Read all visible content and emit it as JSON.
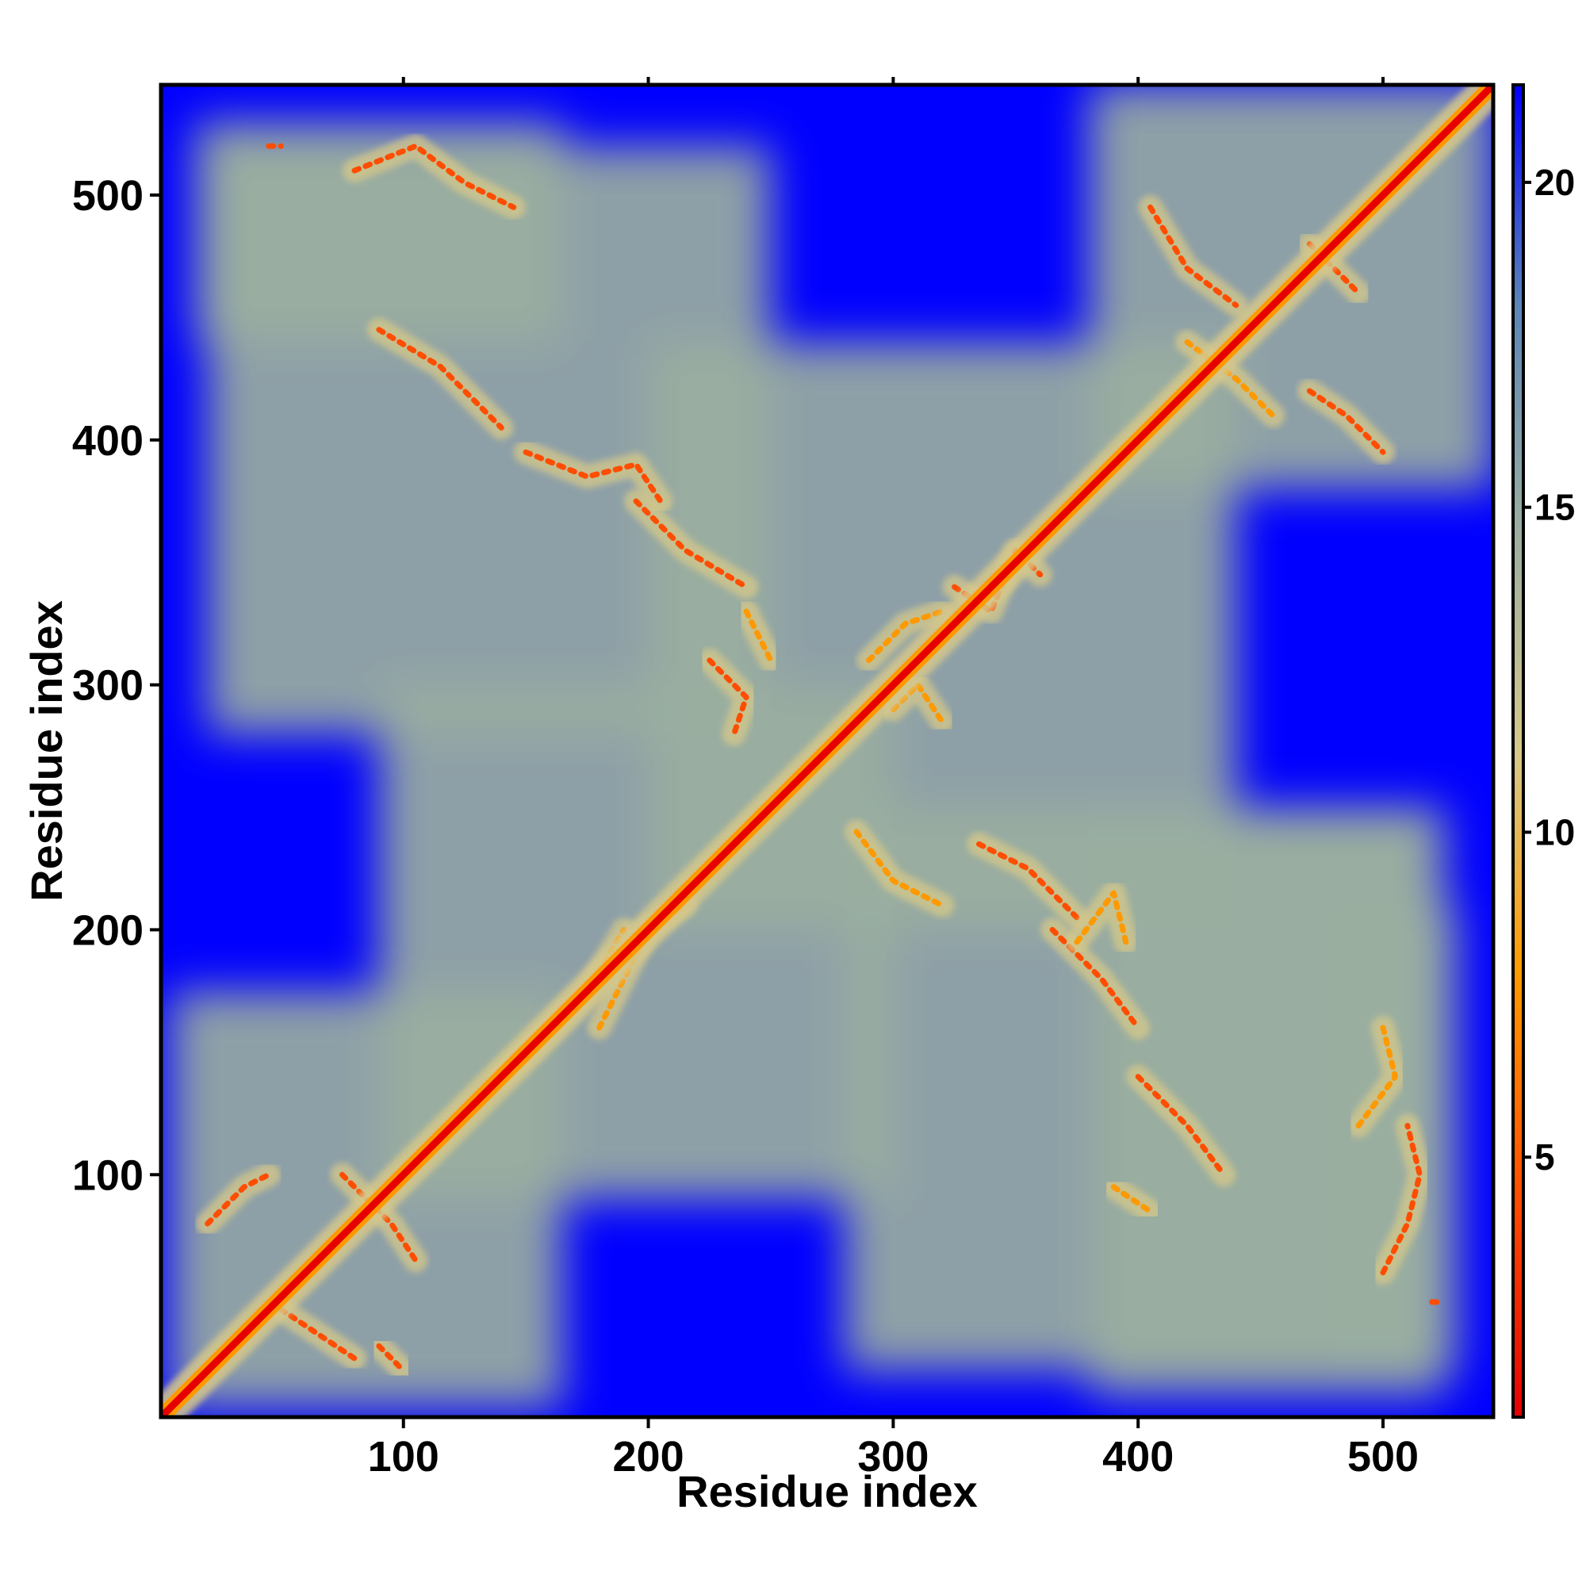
{
  "chart_data": {
    "type": "heatmap",
    "title": "",
    "xlabel": "Residue index",
    "ylabel": "Residue index",
    "xlim": [
      1,
      545
    ],
    "ylim": [
      1,
      545
    ],
    "x_ticks": [
      100,
      200,
      300,
      400,
      500
    ],
    "y_ticks": [
      100,
      200,
      300,
      400,
      500
    ],
    "x_tick_labels": [
      "100",
      "200",
      "300",
      "400",
      "500"
    ],
    "y_tick_labels": [
      "100",
      "200",
      "300",
      "400",
      "500"
    ],
    "colorbar": {
      "range": [
        1,
        21.5
      ],
      "ticks": [
        5,
        10,
        15,
        20
      ],
      "tick_labels": [
        "5",
        "10",
        "15",
        "20"
      ],
      "colors": [
        "#e60000",
        "#ff4d00",
        "#ff9900",
        "#d6c88a",
        "#9aaea0",
        "#5b87b8",
        "#0000ff"
      ]
    },
    "background_color": "#0000ff",
    "diagonal": {
      "from": [
        1,
        1
      ],
      "to": [
        545,
        545
      ],
      "color": "#e60000"
    },
    "regions": [
      {
        "x": [
          5,
          165
        ],
        "y": [
          5,
          175
        ],
        "value": 14
      },
      {
        "x": [
          90,
          300
        ],
        "y": [
          90,
          300
        ],
        "value": 14
      },
      {
        "x": [
          200,
          440
        ],
        "y": [
          200,
          440
        ],
        "value": 14
      },
      {
        "x": [
          380,
          545
        ],
        "y": [
          380,
          545
        ],
        "value": 14
      },
      {
        "x": [
          20,
          250
        ],
        "y": [
          280,
          520
        ],
        "value": 15
      },
      {
        "x": [
          280,
          520
        ],
        "y": [
          20,
          250
        ],
        "value": 15
      },
      {
        "x": [
          380,
          525
        ],
        "y": [
          10,
          250
        ],
        "value": 15
      },
      {
        "x": [
          15,
          165
        ],
        "y": [
          440,
          530
        ],
        "value": 15
      },
      {
        "x": [
          480,
          530
        ],
        "y": [
          20,
          210
        ],
        "value": 15
      }
    ],
    "contacts": [
      {
        "points": [
          [
            20,
            80
          ],
          [
            35,
            95
          ],
          [
            45,
            100
          ]
        ],
        "value": 6
      },
      {
        "points": [
          [
            50,
            45
          ],
          [
            65,
            35
          ],
          [
            80,
            25
          ]
        ],
        "value": 6
      },
      {
        "points": [
          [
            90,
            30
          ],
          [
            100,
            20
          ]
        ],
        "value": 6
      },
      {
        "points": [
          [
            75,
            100
          ],
          [
            95,
            80
          ],
          [
            105,
            65
          ]
        ],
        "value": 6
      },
      {
        "points": [
          [
            140,
            140
          ],
          [
            175,
            175
          ],
          [
            190,
            200
          ]
        ],
        "value": 7
      },
      {
        "points": [
          [
            180,
            160
          ],
          [
            200,
            200
          ],
          [
            215,
            210
          ]
        ],
        "value": 7
      },
      {
        "points": [
          [
            195,
            375
          ],
          [
            215,
            355
          ],
          [
            240,
            340
          ]
        ],
        "value": 5
      },
      {
        "points": [
          [
            150,
            395
          ],
          [
            175,
            385
          ],
          [
            195,
            390
          ],
          [
            205,
            375
          ]
        ],
        "value": 6
      },
      {
        "points": [
          [
            90,
            445
          ],
          [
            115,
            430
          ],
          [
            140,
            405
          ]
        ],
        "value": 6
      },
      {
        "points": [
          [
            80,
            510
          ],
          [
            105,
            520
          ],
          [
            125,
            505
          ],
          [
            145,
            495
          ]
        ],
        "value": 6
      },
      {
        "points": [
          [
            225,
            310
          ],
          [
            240,
            295
          ],
          [
            235,
            280
          ]
        ],
        "value": 6
      },
      {
        "points": [
          [
            240,
            330
          ],
          [
            250,
            310
          ]
        ],
        "value": 7
      },
      {
        "points": [
          [
            285,
            240
          ],
          [
            300,
            220
          ],
          [
            320,
            210
          ]
        ],
        "value": 7
      },
      {
        "points": [
          [
            335,
            235
          ],
          [
            355,
            225
          ],
          [
            375,
            205
          ]
        ],
        "value": 5
      },
      {
        "points": [
          [
            365,
            200
          ],
          [
            385,
            180
          ],
          [
            400,
            160
          ]
        ],
        "value": 6
      },
      {
        "points": [
          [
            400,
            140
          ],
          [
            420,
            120
          ],
          [
            435,
            100
          ]
        ],
        "value": 6
      },
      {
        "points": [
          [
            375,
            195
          ],
          [
            390,
            215
          ],
          [
            395,
            195
          ]
        ],
        "value": 7
      },
      {
        "points": [
          [
            290,
            310
          ],
          [
            305,
            325
          ],
          [
            320,
            330
          ]
        ],
        "value": 7
      },
      {
        "points": [
          [
            325,
            340
          ],
          [
            340,
            330
          ],
          [
            350,
            355
          ],
          [
            360,
            345
          ]
        ],
        "value": 6
      },
      {
        "points": [
          [
            300,
            290
          ],
          [
            310,
            300
          ],
          [
            320,
            285
          ]
        ],
        "value": 7
      },
      {
        "points": [
          [
            405,
            495
          ],
          [
            420,
            470
          ],
          [
            440,
            455
          ]
        ],
        "value": 6
      },
      {
        "points": [
          [
            470,
            480
          ],
          [
            480,
            470
          ],
          [
            490,
            460
          ]
        ],
        "value": 6
      },
      {
        "points": [
          [
            470,
            420
          ],
          [
            485,
            410
          ],
          [
            500,
            395
          ]
        ],
        "value": 6
      },
      {
        "points": [
          [
            420,
            440
          ],
          [
            440,
            425
          ],
          [
            455,
            410
          ]
        ],
        "value": 7
      },
      {
        "points": [
          [
            500,
            60
          ],
          [
            510,
            80
          ],
          [
            515,
            100
          ],
          [
            510,
            120
          ]
        ],
        "value": 6
      },
      {
        "points": [
          [
            490,
            120
          ],
          [
            505,
            140
          ],
          [
            500,
            160
          ]
        ],
        "value": 7
      },
      {
        "points": [
          [
            390,
            95
          ],
          [
            405,
            85
          ]
        ],
        "value": 8
      },
      {
        "points": [
          [
            45,
            520
          ],
          [
            50,
            520
          ]
        ],
        "value": 4
      },
      {
        "points": [
          [
            520,
            48
          ],
          [
            522,
            48
          ]
        ],
        "value": 4
      }
    ]
  }
}
